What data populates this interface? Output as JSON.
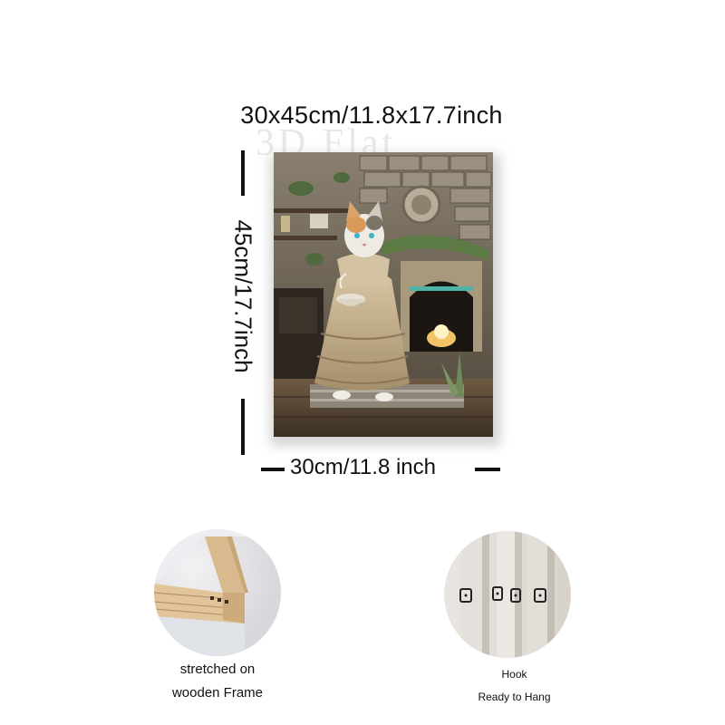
{
  "dimensions": {
    "overall": "30x45cm/11.8x17.7inch",
    "height": "45cm/17.7inch",
    "width": "30cm/11.8 inch"
  },
  "watermark": "3D Flat",
  "features": [
    {
      "icon": "wooden-frame-corner",
      "caption_line1": "stretched on",
      "caption_line2": "wooden Frame"
    },
    {
      "icon": "hook-clips",
      "caption_line1": "Hook",
      "caption_line2": "Ready to Hang"
    }
  ],
  "colors": {
    "text": "#111111",
    "wood": "#d9b98e",
    "canvas_dark": "#3e372e"
  }
}
